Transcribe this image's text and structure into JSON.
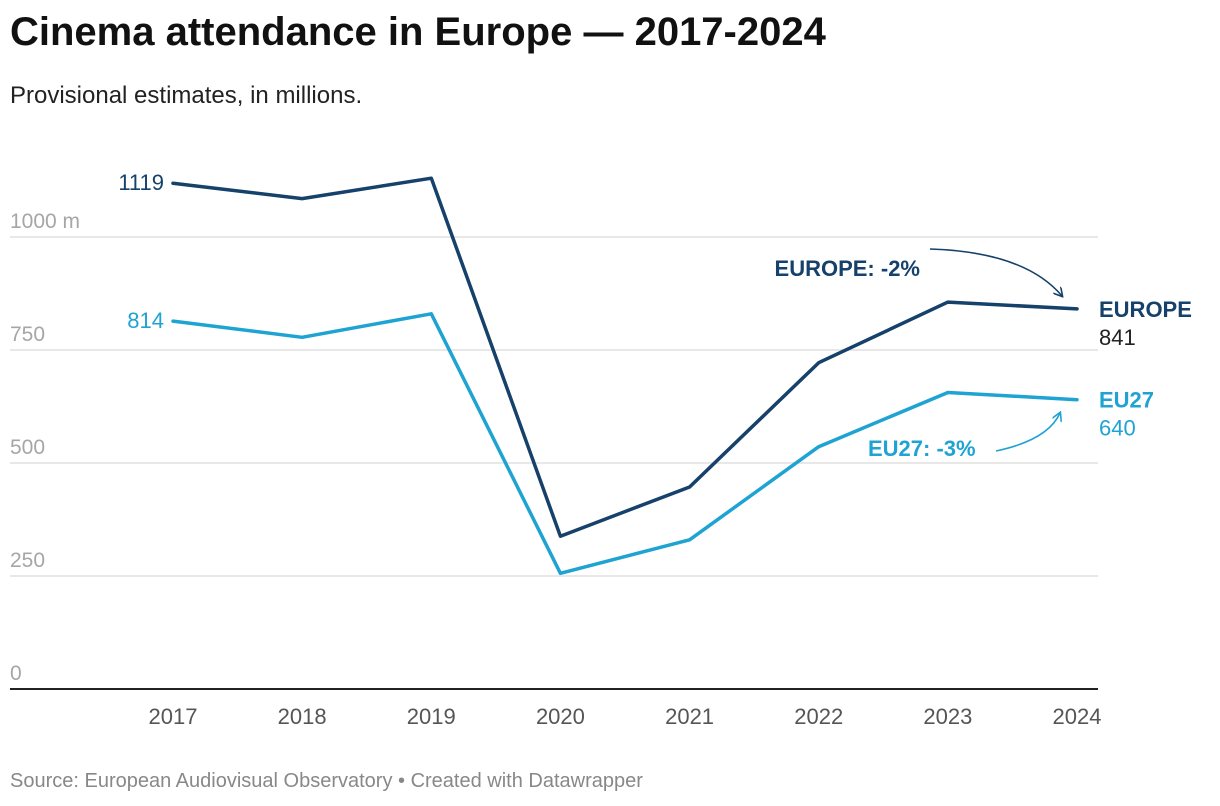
{
  "title": "Cinema attendance in Europe — 2017-2024",
  "subtitle": "Provisional estimates, in millions.",
  "footer": {
    "source": "Source: European Audiovisual Observatory",
    "separator": " • ",
    "credit": "Created with Datawrapper"
  },
  "colors": {
    "europe": "#15416a",
    "eu27": "#1fa3d2",
    "grid": "#e1e1e1",
    "axis": "#222222"
  },
  "chart_data": {
    "type": "line",
    "title": "Cinema attendance in Europe — 2017-2024",
    "subtitle": "Provisional estimates, in millions.",
    "x": [
      "2017",
      "2018",
      "2019",
      "2020",
      "2021",
      "2022",
      "2023",
      "2024"
    ],
    "ylim": [
      0,
      1150
    ],
    "yticks": [
      0,
      250,
      500,
      750,
      1000
    ],
    "ytick_labels": [
      "0",
      "250",
      "500",
      "750",
      "1000 m"
    ],
    "grid": true,
    "legend": "direct labels at line ends",
    "series": [
      {
        "name": "EUROPE",
        "values": [
          1119,
          1085,
          1130,
          338,
          447,
          722,
          856,
          841
        ],
        "start_label": "1119",
        "end_label": "841",
        "annotation": "EUROPE: -2%"
      },
      {
        "name": "EU27",
        "values": [
          814,
          778,
          830,
          256,
          330,
          536,
          656,
          640
        ],
        "start_label": "814",
        "end_label": "640",
        "annotation": "EU27: -3%"
      }
    ]
  }
}
